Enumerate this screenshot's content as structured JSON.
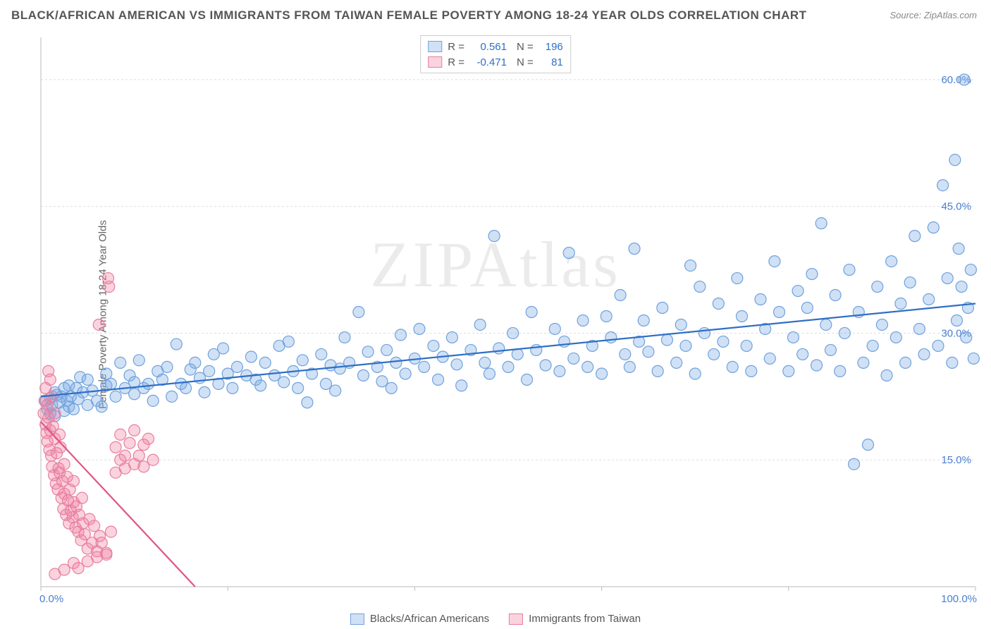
{
  "title": "BLACK/AFRICAN AMERICAN VS IMMIGRANTS FROM TAIWAN FEMALE POVERTY AMONG 18-24 YEAR OLDS CORRELATION CHART",
  "source": "Source: ZipAtlas.com",
  "watermark": "ZIPAtlas",
  "y_axis_label": "Female Poverty Among 18-24 Year Olds",
  "chart": {
    "type": "scatter",
    "xlim": [
      0,
      100
    ],
    "ylim": [
      0,
      65
    ],
    "xticks": [
      0,
      20,
      40,
      60,
      80,
      100
    ],
    "xtick_labels": {
      "0": "0.0%",
      "100": "100.0%"
    },
    "yticks": [
      15,
      30,
      45,
      60
    ],
    "ytick_labels": [
      "15.0%",
      "30.0%",
      "45.0%",
      "60.0%"
    ],
    "grid_color": "#dddddd",
    "grid_dash": "3,3",
    "axis_color": "#bbbbbb",
    "background_color": "#ffffff",
    "marker_radius": 8,
    "marker_stroke_width": 1.2,
    "series": [
      {
        "name": "Blacks/African Americans",
        "fill": "rgba(120,170,230,0.35)",
        "stroke": "#6fa1dc",
        "line_color": "#2f6fc6",
        "line_width": 2.2,
        "trend": {
          "x1": 0,
          "y1": 22.5,
          "x2": 100,
          "y2": 33.5
        },
        "stats": {
          "R": "0.561",
          "N": "196",
          "value_color": "#2f6fc6"
        },
        "points": [
          [
            0.5,
            22
          ],
          [
            0.7,
            21
          ],
          [
            1,
            20.5
          ],
          [
            1,
            22.3
          ],
          [
            1.2,
            21.5
          ],
          [
            1.5,
            23
          ],
          [
            1.5,
            20.2
          ],
          [
            1.7,
            22.7
          ],
          [
            2,
            21.8
          ],
          [
            2.2,
            22.5
          ],
          [
            2.5,
            23.5
          ],
          [
            2.5,
            20.8
          ],
          [
            2.8,
            22
          ],
          [
            3,
            21.3
          ],
          [
            3,
            23.8
          ],
          [
            3.2,
            22.5
          ],
          [
            3.5,
            21
          ],
          [
            3.8,
            23.5
          ],
          [
            4,
            22.2
          ],
          [
            4.2,
            24.8
          ],
          [
            4.5,
            23
          ],
          [
            5,
            21.5
          ],
          [
            5,
            24.5
          ],
          [
            5.5,
            23.2
          ],
          [
            6,
            22
          ],
          [
            6.5,
            21.3
          ],
          [
            7,
            23.8
          ],
          [
            7,
            25.2
          ],
          [
            7.5,
            24
          ],
          [
            8,
            22.5
          ],
          [
            8.5,
            26.5
          ],
          [
            9,
            23.5
          ],
          [
            9.5,
            25
          ],
          [
            10,
            24.2
          ],
          [
            10,
            22.8
          ],
          [
            10.5,
            26.8
          ],
          [
            11,
            23.5
          ],
          [
            11.5,
            24
          ],
          [
            12,
            22
          ],
          [
            12.5,
            25.5
          ],
          [
            13,
            24.5
          ],
          [
            13.5,
            26
          ],
          [
            14,
            22.5
          ],
          [
            14.5,
            28.7
          ],
          [
            15,
            24
          ],
          [
            15.5,
            23.5
          ],
          [
            16,
            25.7
          ],
          [
            16.5,
            26.5
          ],
          [
            17,
            24.7
          ],
          [
            17.5,
            23
          ],
          [
            18,
            25.5
          ],
          [
            18.5,
            27.5
          ],
          [
            19,
            24
          ],
          [
            19.5,
            28.2
          ],
          [
            20,
            25.2
          ],
          [
            20.5,
            23.5
          ],
          [
            21,
            26
          ],
          [
            22,
            25
          ],
          [
            22.5,
            27.2
          ],
          [
            23,
            24.5
          ],
          [
            23.5,
            23.8
          ],
          [
            24,
            26.5
          ],
          [
            25,
            25
          ],
          [
            25.5,
            28.5
          ],
          [
            26,
            24.2
          ],
          [
            26.5,
            29
          ],
          [
            27,
            25.5
          ],
          [
            27.5,
            23.5
          ],
          [
            28,
            26.8
          ],
          [
            28.5,
            21.8
          ],
          [
            29,
            25.2
          ],
          [
            30,
            27.5
          ],
          [
            30.5,
            24
          ],
          [
            31,
            26.2
          ],
          [
            31.5,
            23.2
          ],
          [
            32,
            25.8
          ],
          [
            32.5,
            29.5
          ],
          [
            33,
            26.5
          ],
          [
            34,
            32.5
          ],
          [
            34.5,
            25
          ],
          [
            35,
            27.8
          ],
          [
            36,
            26
          ],
          [
            36.5,
            24.3
          ],
          [
            37,
            28
          ],
          [
            37.5,
            23.5
          ],
          [
            38,
            26.5
          ],
          [
            38.5,
            29.8
          ],
          [
            39,
            25.2
          ],
          [
            40,
            27
          ],
          [
            40.5,
            30.5
          ],
          [
            41,
            26
          ],
          [
            42,
            28.5
          ],
          [
            42.5,
            24.5
          ],
          [
            43,
            27.2
          ],
          [
            44,
            29.5
          ],
          [
            44.5,
            26.3
          ],
          [
            45,
            23.8
          ],
          [
            46,
            28
          ],
          [
            47,
            31
          ],
          [
            47.5,
            26.5
          ],
          [
            48,
            25.2
          ],
          [
            48.5,
            41.5
          ],
          [
            49,
            28.2
          ],
          [
            50,
            26
          ],
          [
            50.5,
            30
          ],
          [
            51,
            27.5
          ],
          [
            52,
            24.5
          ],
          [
            52.5,
            32.5
          ],
          [
            53,
            28
          ],
          [
            54,
            26.2
          ],
          [
            55,
            30.5
          ],
          [
            55.5,
            25.5
          ],
          [
            56,
            29
          ],
          [
            56.5,
            39.5
          ],
          [
            57,
            27
          ],
          [
            58,
            31.5
          ],
          [
            58.5,
            26
          ],
          [
            59,
            28.5
          ],
          [
            60,
            25.2
          ],
          [
            60.5,
            32
          ],
          [
            61,
            29.5
          ],
          [
            62,
            34.5
          ],
          [
            62.5,
            27.5
          ],
          [
            63,
            26
          ],
          [
            63.5,
            40
          ],
          [
            64,
            29
          ],
          [
            64.5,
            31.5
          ],
          [
            65,
            27.8
          ],
          [
            66,
            25.5
          ],
          [
            66.5,
            33
          ],
          [
            67,
            29.2
          ],
          [
            68,
            26.5
          ],
          [
            68.5,
            31
          ],
          [
            69,
            28.5
          ],
          [
            69.5,
            38
          ],
          [
            70,
            25.2
          ],
          [
            70.5,
            35.5
          ],
          [
            71,
            30
          ],
          [
            72,
            27.5
          ],
          [
            72.5,
            33.5
          ],
          [
            73,
            29
          ],
          [
            74,
            26
          ],
          [
            74.5,
            36.5
          ],
          [
            75,
            32
          ],
          [
            75.5,
            28.5
          ],
          [
            76,
            25.5
          ],
          [
            77,
            34
          ],
          [
            77.5,
            30.5
          ],
          [
            78,
            27
          ],
          [
            78.5,
            38.5
          ],
          [
            79,
            32.5
          ],
          [
            80,
            25.5
          ],
          [
            80.5,
            29.5
          ],
          [
            81,
            35
          ],
          [
            81.5,
            27.5
          ],
          [
            82,
            33
          ],
          [
            82.5,
            37
          ],
          [
            83,
            26.2
          ],
          [
            83.5,
            43
          ],
          [
            84,
            31
          ],
          [
            84.5,
            28
          ],
          [
            85,
            34.5
          ],
          [
            85.5,
            25.5
          ],
          [
            86,
            30
          ],
          [
            86.5,
            37.5
          ],
          [
            87,
            14.5
          ],
          [
            87.5,
            32.5
          ],
          [
            88,
            26.5
          ],
          [
            88.5,
            16.8
          ],
          [
            89,
            28.5
          ],
          [
            89.5,
            35.5
          ],
          [
            90,
            31
          ],
          [
            90.5,
            25
          ],
          [
            91,
            38.5
          ],
          [
            91.5,
            29.5
          ],
          [
            92,
            33.5
          ],
          [
            92.5,
            26.5
          ],
          [
            93,
            36
          ],
          [
            93.5,
            41.5
          ],
          [
            94,
            30.5
          ],
          [
            94.5,
            27.5
          ],
          [
            95,
            34
          ],
          [
            95.5,
            42.5
          ],
          [
            96,
            28.5
          ],
          [
            96.5,
            47.5
          ],
          [
            97,
            36.5
          ],
          [
            97.5,
            26.5
          ],
          [
            97.8,
            50.5
          ],
          [
            98,
            31.5
          ],
          [
            98.2,
            40
          ],
          [
            98.5,
            35.5
          ],
          [
            98.8,
            60
          ],
          [
            99,
            29.5
          ],
          [
            99.2,
            33
          ],
          [
            99.5,
            37.5
          ],
          [
            99.8,
            27
          ]
        ]
      },
      {
        "name": "Immigrants from Taiwan",
        "fill": "rgba(240,130,160,0.35)",
        "stroke": "#e77ea0",
        "line_color": "#e05585",
        "line_width": 2.2,
        "trend": {
          "x1": 0,
          "y1": 19.5,
          "x2": 16.5,
          "y2": 0
        },
        "stats": {
          "R": "-0.471",
          "N": "81",
          "value_color": "#2f6fc6"
        },
        "points": [
          [
            0.3,
            20.5
          ],
          [
            0.4,
            22
          ],
          [
            0.5,
            19.2
          ],
          [
            0.5,
            23.5
          ],
          [
            0.6,
            18.2
          ],
          [
            0.7,
            21.5
          ],
          [
            0.7,
            17.2
          ],
          [
            0.8,
            20
          ],
          [
            0.8,
            25.5
          ],
          [
            0.9,
            16.2
          ],
          [
            1,
            24.5
          ],
          [
            1,
            18.5
          ],
          [
            1.1,
            15.5
          ],
          [
            1.2,
            22.5
          ],
          [
            1.2,
            14.2
          ],
          [
            1.3,
            19
          ],
          [
            1.4,
            13.2
          ],
          [
            1.5,
            17.5
          ],
          [
            1.5,
            20.5
          ],
          [
            1.6,
            12.2
          ],
          [
            1.7,
            15.8
          ],
          [
            1.8,
            11.5
          ],
          [
            1.9,
            14
          ],
          [
            2,
            13.5
          ],
          [
            2,
            18
          ],
          [
            2.1,
            16.5
          ],
          [
            2.2,
            10.5
          ],
          [
            2.3,
            12.5
          ],
          [
            2.4,
            9.2
          ],
          [
            2.5,
            14.5
          ],
          [
            2.5,
            11
          ],
          [
            2.7,
            8.5
          ],
          [
            2.8,
            13
          ],
          [
            2.9,
            10.2
          ],
          [
            3,
            7.5
          ],
          [
            3.1,
            11.5
          ],
          [
            3.2,
            9
          ],
          [
            3.4,
            8.2
          ],
          [
            3.5,
            12.5
          ],
          [
            3.5,
            10
          ],
          [
            3.7,
            7
          ],
          [
            3.8,
            9.5
          ],
          [
            4,
            6.5
          ],
          [
            4.1,
            8.5
          ],
          [
            4.3,
            5.5
          ],
          [
            4.4,
            10.5
          ],
          [
            4.5,
            7.5
          ],
          [
            4.7,
            6.2
          ],
          [
            5,
            4.5
          ],
          [
            5.2,
            8
          ],
          [
            5.5,
            5.2
          ],
          [
            5.7,
            7.2
          ],
          [
            6,
            4.2
          ],
          [
            6.2,
            31
          ],
          [
            6.3,
            6
          ],
          [
            6.5,
            5.2
          ],
          [
            7,
            3.8
          ],
          [
            7.2,
            36.5
          ],
          [
            7.3,
            35.5
          ],
          [
            7.5,
            6.5
          ],
          [
            8,
            16.5
          ],
          [
            8.5,
            15
          ],
          [
            8.5,
            18
          ],
          [
            9,
            15.5
          ],
          [
            9.5,
            17
          ],
          [
            10,
            14.5
          ],
          [
            10,
            18.5
          ],
          [
            10.5,
            15.5
          ],
          [
            11,
            14.2
          ],
          [
            11,
            16.8
          ],
          [
            11.5,
            17.5
          ],
          [
            12,
            15
          ],
          [
            1.5,
            1.5
          ],
          [
            2.5,
            2
          ],
          [
            3.5,
            2.8
          ],
          [
            4,
            2.2
          ],
          [
            5,
            3
          ],
          [
            6,
            3.5
          ],
          [
            7,
            4
          ],
          [
            8,
            13.5
          ],
          [
            9,
            14
          ]
        ]
      }
    ]
  },
  "stat_legend": {
    "r_label": "R =",
    "n_label": "N ="
  },
  "bottom_legend": {
    "items": [
      "Blacks/African Americans",
      "Immigrants from Taiwan"
    ]
  }
}
